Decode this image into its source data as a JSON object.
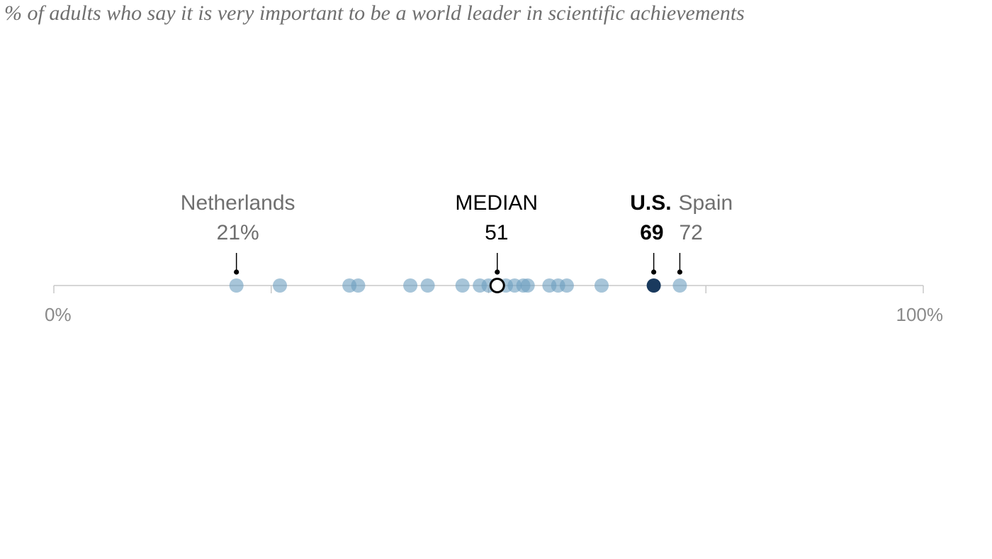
{
  "chart_data": {
    "type": "scatter",
    "subtitle": "% of adults who say it is very important to be a world leader in scientific achievements",
    "axis": {
      "min": 0,
      "max": 100,
      "min_label": "0%",
      "max_label": "100%",
      "ticks": [
        0,
        25,
        50,
        75,
        100
      ]
    },
    "points": [
      {
        "value": 21
      },
      {
        "value": 26
      },
      {
        "value": 34
      },
      {
        "value": 35
      },
      {
        "value": 41
      },
      {
        "value": 43
      },
      {
        "value": 47
      },
      {
        "value": 49
      },
      {
        "value": 50
      },
      {
        "value": 52
      },
      {
        "value": 53
      },
      {
        "value": 54
      },
      {
        "value": 54.5
      },
      {
        "value": 57
      },
      {
        "value": 58
      },
      {
        "value": 59
      },
      {
        "value": 63
      },
      {
        "value": 72
      }
    ],
    "median": {
      "label": "MEDIAN",
      "value": 51,
      "value_label": "51"
    },
    "us": {
      "label": "U.S.",
      "value": 69,
      "value_label": "69"
    },
    "callouts": [
      {
        "label": "Netherlands",
        "value": 21,
        "value_label": "21%"
      },
      {
        "label": "Spain",
        "value": 72,
        "value_label": "72"
      }
    ],
    "colors": {
      "dot": "#6c9fc0",
      "us": "#1a3a5e",
      "median_fill": "#ffffff",
      "median_stroke": "#000000",
      "axis": "#c8c8c8",
      "label_gray": "#6f6f6f",
      "axis_label": "#8a8a8a"
    }
  }
}
